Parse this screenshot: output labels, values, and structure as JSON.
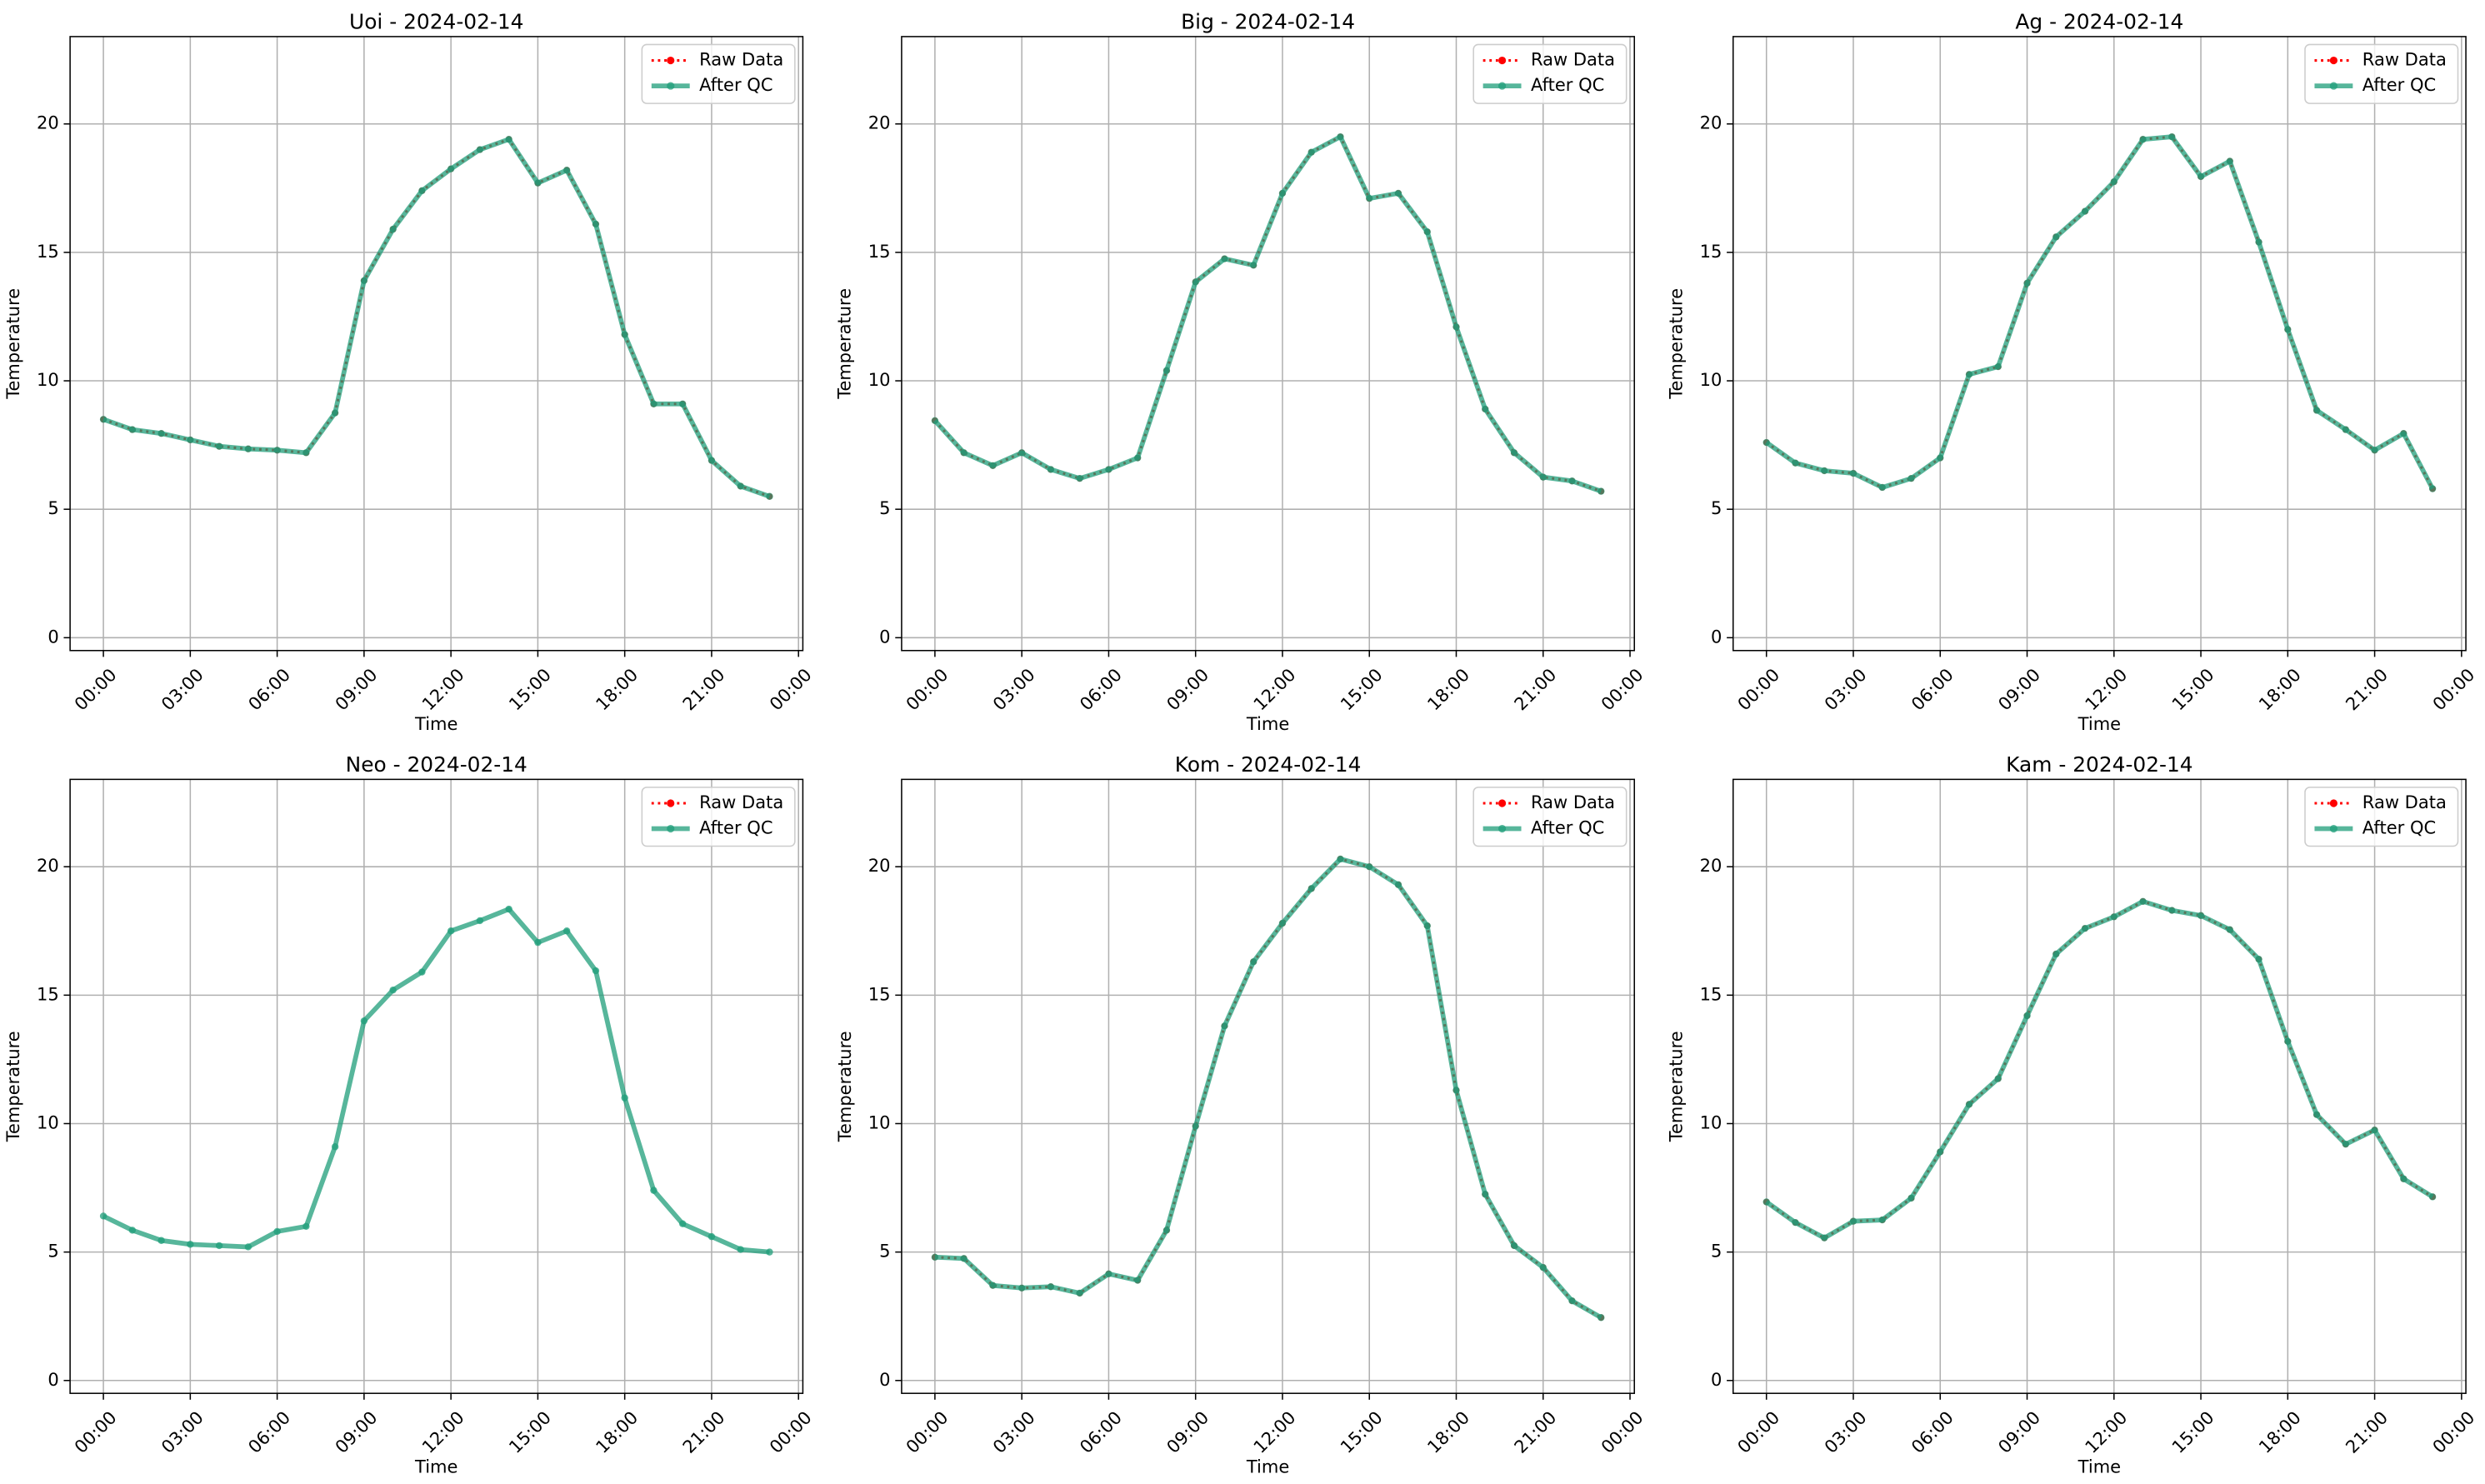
{
  "chart_data": [
    {
      "type": "line",
      "title": "Uoi - 2024-02-14",
      "xlabel": "Time",
      "ylabel": "Temperature",
      "x": [
        "00:00",
        "01:00",
        "02:00",
        "03:00",
        "04:00",
        "05:00",
        "06:00",
        "07:00",
        "08:00",
        "09:00",
        "10:00",
        "11:00",
        "12:00",
        "13:00",
        "14:00",
        "15:00",
        "16:00",
        "17:00",
        "18:00",
        "19:00",
        "20:00",
        "21:00",
        "22:00",
        "23:00"
      ],
      "series": [
        {
          "name": "Raw Data",
          "color": "#ff0000",
          "values": [
            8.5,
            8.1,
            7.95,
            7.7,
            7.45,
            7.35,
            7.3,
            7.2,
            8.75,
            13.9,
            15.9,
            17.4,
            18.25,
            19.0,
            19.4,
            17.7,
            18.2,
            16.1,
            11.8,
            9.1,
            9.1,
            6.9,
            5.9,
            5.5
          ]
        },
        {
          "name": "After QC",
          "color": "#1f9e7a",
          "values": [
            8.5,
            8.1,
            7.95,
            7.7,
            7.45,
            7.35,
            7.3,
            7.2,
            8.75,
            13.9,
            15.9,
            17.4,
            18.25,
            19.0,
            19.4,
            17.7,
            18.2,
            16.1,
            11.8,
            9.1,
            9.1,
            6.9,
            5.9,
            5.5
          ]
        }
      ],
      "xlim": [
        -1.15,
        24.15
      ],
      "ylim": [
        -0.5,
        23.4
      ],
      "xticks": [
        {
          "value": 0,
          "label": "00:00"
        },
        {
          "value": 3,
          "label": "03:00"
        },
        {
          "value": 6,
          "label": "06:00"
        },
        {
          "value": 9,
          "label": "09:00"
        },
        {
          "value": 12,
          "label": "12:00"
        },
        {
          "value": 15,
          "label": "15:00"
        },
        {
          "value": 18,
          "label": "18:00"
        },
        {
          "value": 21,
          "label": "21:00"
        },
        {
          "value": 24,
          "label": "00:00"
        }
      ],
      "yticks": [
        0,
        5,
        10,
        15,
        20
      ],
      "grid": true,
      "legend": "upper right"
    },
    {
      "type": "line",
      "title": "Big - 2024-02-14",
      "xlabel": "Time",
      "ylabel": "Temperature",
      "x": [
        "00:00",
        "01:00",
        "02:00",
        "03:00",
        "04:00",
        "05:00",
        "06:00",
        "07:00",
        "08:00",
        "09:00",
        "10:00",
        "11:00",
        "12:00",
        "13:00",
        "14:00",
        "15:00",
        "16:00",
        "17:00",
        "18:00",
        "19:00",
        "20:00",
        "21:00",
        "22:00",
        "23:00"
      ],
      "series": [
        {
          "name": "Raw Data",
          "color": "#ff0000",
          "values": [
            8.45,
            7.2,
            6.7,
            7.2,
            6.55,
            6.2,
            6.55,
            7.0,
            10.4,
            13.85,
            14.75,
            14.5,
            17.3,
            18.9,
            19.5,
            17.1,
            17.3,
            15.8,
            12.1,
            8.9,
            7.2,
            6.25,
            6.1,
            5.7
          ]
        },
        {
          "name": "After QC",
          "color": "#1f9e7a",
          "values": [
            8.45,
            7.2,
            6.7,
            7.2,
            6.55,
            6.2,
            6.55,
            7.0,
            10.4,
            13.85,
            14.75,
            14.5,
            17.3,
            18.9,
            19.5,
            17.1,
            17.3,
            15.8,
            12.1,
            8.9,
            7.2,
            6.25,
            6.1,
            5.7
          ]
        }
      ],
      "xlim": [
        -1.15,
        24.15
      ],
      "ylim": [
        -0.5,
        23.4
      ],
      "xticks": [
        {
          "value": 0,
          "label": "00:00"
        },
        {
          "value": 3,
          "label": "03:00"
        },
        {
          "value": 6,
          "label": "06:00"
        },
        {
          "value": 9,
          "label": "09:00"
        },
        {
          "value": 12,
          "label": "12:00"
        },
        {
          "value": 15,
          "label": "15:00"
        },
        {
          "value": 18,
          "label": "18:00"
        },
        {
          "value": 21,
          "label": "21:00"
        },
        {
          "value": 24,
          "label": "00:00"
        }
      ],
      "yticks": [
        0,
        5,
        10,
        15,
        20
      ],
      "grid": true,
      "legend": "upper right"
    },
    {
      "type": "line",
      "title": "Ag - 2024-02-14",
      "xlabel": "Time",
      "ylabel": "Temperature",
      "x": [
        "00:00",
        "01:00",
        "02:00",
        "03:00",
        "04:00",
        "05:00",
        "06:00",
        "07:00",
        "08:00",
        "09:00",
        "10:00",
        "11:00",
        "12:00",
        "13:00",
        "14:00",
        "15:00",
        "16:00",
        "17:00",
        "18:00",
        "19:00",
        "20:00",
        "21:00",
        "22:00",
        "23:00"
      ],
      "series": [
        {
          "name": "Raw Data",
          "color": "#ff0000",
          "values": [
            7.6,
            6.8,
            6.5,
            6.4,
            5.85,
            6.2,
            7.0,
            10.25,
            10.55,
            13.8,
            15.6,
            16.6,
            17.75,
            19.4,
            19.5,
            17.95,
            18.55,
            15.4,
            12.0,
            8.85,
            8.1,
            7.3,
            7.95,
            5.8
          ]
        },
        {
          "name": "After QC",
          "color": "#1f9e7a",
          "values": [
            7.6,
            6.8,
            6.5,
            6.4,
            5.85,
            6.2,
            7.0,
            10.25,
            10.55,
            13.8,
            15.6,
            16.6,
            17.75,
            19.4,
            19.5,
            17.95,
            18.55,
            15.4,
            12.0,
            8.85,
            8.1,
            7.3,
            7.95,
            5.8
          ]
        }
      ],
      "xlim": [
        -1.15,
        24.15
      ],
      "ylim": [
        -0.5,
        23.4
      ],
      "xticks": [
        {
          "value": 0,
          "label": "00:00"
        },
        {
          "value": 3,
          "label": "03:00"
        },
        {
          "value": 6,
          "label": "06:00"
        },
        {
          "value": 9,
          "label": "09:00"
        },
        {
          "value": 12,
          "label": "12:00"
        },
        {
          "value": 15,
          "label": "15:00"
        },
        {
          "value": 18,
          "label": "18:00"
        },
        {
          "value": 21,
          "label": "21:00"
        },
        {
          "value": 24,
          "label": "00:00"
        }
      ],
      "yticks": [
        0,
        5,
        10,
        15,
        20
      ],
      "grid": true,
      "legend": "upper right"
    },
    {
      "type": "line",
      "title": "Neo - 2024-02-14",
      "xlabel": "Time",
      "ylabel": "Temperature",
      "x": [
        "00:00",
        "01:00",
        "02:00",
        "03:00",
        "04:00",
        "05:00",
        "06:00",
        "07:00",
        "08:00",
        "09:00",
        "10:00",
        "11:00",
        "12:00",
        "13:00",
        "14:00",
        "15:00",
        "16:00",
        "17:00",
        "18:00",
        "19:00",
        "20:00",
        "21:00",
        "22:00",
        "23:00"
      ],
      "series": [
        {
          "name": "Raw Data",
          "color": "#ff0000",
          "values": [
            null,
            null,
            null,
            null,
            null,
            null,
            null,
            null,
            null,
            null,
            null,
            null,
            null,
            null,
            null,
            null,
            null,
            null,
            null,
            null,
            null,
            null,
            null,
            null
          ]
        },
        {
          "name": "After QC",
          "color": "#1f9e7a",
          "values": [
            6.4,
            5.85,
            5.45,
            5.3,
            5.25,
            5.2,
            5.8,
            6.0,
            9.1,
            14.0,
            15.2,
            15.9,
            17.5,
            17.9,
            18.35,
            17.05,
            17.5,
            15.95,
            11.0,
            7.4,
            6.1,
            5.6,
            5.1,
            5.0
          ]
        }
      ],
      "xlim": [
        -1.15,
        24.15
      ],
      "ylim": [
        -0.5,
        23.4
      ],
      "xticks": [
        {
          "value": 0,
          "label": "00:00"
        },
        {
          "value": 3,
          "label": "03:00"
        },
        {
          "value": 6,
          "label": "06:00"
        },
        {
          "value": 9,
          "label": "09:00"
        },
        {
          "value": 12,
          "label": "12:00"
        },
        {
          "value": 15,
          "label": "15:00"
        },
        {
          "value": 18,
          "label": "18:00"
        },
        {
          "value": 21,
          "label": "21:00"
        },
        {
          "value": 24,
          "label": "00:00"
        }
      ],
      "yticks": [
        0,
        5,
        10,
        15,
        20
      ],
      "grid": true,
      "legend": "upper right"
    },
    {
      "type": "line",
      "title": "Kom - 2024-02-14",
      "xlabel": "Time",
      "ylabel": "Temperature",
      "x": [
        "00:00",
        "01:00",
        "02:00",
        "03:00",
        "04:00",
        "05:00",
        "06:00",
        "07:00",
        "08:00",
        "09:00",
        "10:00",
        "11:00",
        "12:00",
        "13:00",
        "14:00",
        "15:00",
        "16:00",
        "17:00",
        "18:00",
        "19:00",
        "20:00",
        "21:00",
        "22:00",
        "23:00"
      ],
      "series": [
        {
          "name": "Raw Data",
          "color": "#ff0000",
          "values": [
            4.8,
            4.75,
            3.7,
            3.6,
            3.65,
            3.4,
            4.15,
            3.9,
            5.85,
            9.9,
            13.8,
            16.3,
            17.8,
            19.15,
            20.3,
            20.0,
            19.3,
            17.7,
            11.3,
            7.25,
            5.25,
            4.4,
            3.1,
            2.45
          ]
        },
        {
          "name": "After QC",
          "color": "#1f9e7a",
          "values": [
            4.8,
            4.75,
            3.7,
            3.6,
            3.65,
            3.4,
            4.15,
            3.9,
            5.85,
            9.9,
            13.8,
            16.3,
            17.8,
            19.15,
            20.3,
            20.0,
            19.3,
            17.7,
            11.3,
            7.25,
            5.25,
            4.4,
            3.1,
            2.45
          ]
        }
      ],
      "xlim": [
        -1.15,
        24.15
      ],
      "ylim": [
        -0.5,
        23.4
      ],
      "xticks": [
        {
          "value": 0,
          "label": "00:00"
        },
        {
          "value": 3,
          "label": "03:00"
        },
        {
          "value": 6,
          "label": "06:00"
        },
        {
          "value": 9,
          "label": "09:00"
        },
        {
          "value": 12,
          "label": "12:00"
        },
        {
          "value": 15,
          "label": "15:00"
        },
        {
          "value": 18,
          "label": "18:00"
        },
        {
          "value": 21,
          "label": "21:00"
        },
        {
          "value": 24,
          "label": "00:00"
        }
      ],
      "yticks": [
        0,
        5,
        10,
        15,
        20
      ],
      "grid": true,
      "legend": "upper right"
    },
    {
      "type": "line",
      "title": "Kam - 2024-02-14",
      "xlabel": "Time",
      "ylabel": "Temperature",
      "x": [
        "00:00",
        "01:00",
        "02:00",
        "03:00",
        "04:00",
        "05:00",
        "06:00",
        "07:00",
        "08:00",
        "09:00",
        "10:00",
        "11:00",
        "12:00",
        "13:00",
        "14:00",
        "15:00",
        "16:00",
        "17:00",
        "18:00",
        "19:00",
        "20:00",
        "21:00",
        "22:00",
        "23:00"
      ],
      "series": [
        {
          "name": "Raw Data",
          "color": "#ff0000",
          "values": [
            6.95,
            6.15,
            5.55,
            6.2,
            6.25,
            7.1,
            8.9,
            10.75,
            11.75,
            14.2,
            16.6,
            17.6,
            18.05,
            18.65,
            18.3,
            18.1,
            17.55,
            16.4,
            13.2,
            10.35,
            9.2,
            9.75,
            7.85,
            7.15
          ]
        },
        {
          "name": "After QC",
          "color": "#1f9e7a",
          "values": [
            6.95,
            6.15,
            5.55,
            6.2,
            6.25,
            7.1,
            8.9,
            10.75,
            11.75,
            14.2,
            16.6,
            17.6,
            18.05,
            18.65,
            18.3,
            18.1,
            17.55,
            16.4,
            13.2,
            10.35,
            9.2,
            9.75,
            7.85,
            7.15
          ]
        }
      ],
      "xlim": [
        -1.15,
        24.15
      ],
      "ylim": [
        -0.5,
        23.4
      ],
      "xticks": [
        {
          "value": 0,
          "label": "00:00"
        },
        {
          "value": 3,
          "label": "03:00"
        },
        {
          "value": 6,
          "label": "06:00"
        },
        {
          "value": 9,
          "label": "09:00"
        },
        {
          "value": 12,
          "label": "12:00"
        },
        {
          "value": 15,
          "label": "15:00"
        },
        {
          "value": 18,
          "label": "18:00"
        },
        {
          "value": 21,
          "label": "21:00"
        },
        {
          "value": 24,
          "label": "00:00"
        }
      ],
      "yticks": [
        0,
        5,
        10,
        15,
        20
      ],
      "grid": true,
      "legend": "upper right"
    }
  ]
}
